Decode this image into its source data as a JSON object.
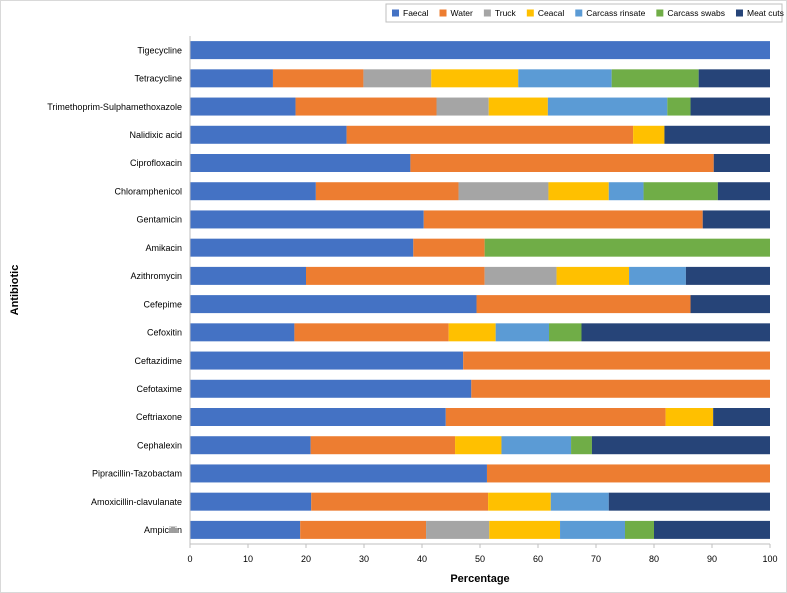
{
  "chart_data": {
    "type": "bar",
    "orientation": "horizontal",
    "stacked": true,
    "title": "",
    "xlabel": "Percentage",
    "ylabel": "Antibiotic",
    "xlim": [
      0,
      100
    ],
    "xticks": [
      0,
      10,
      20,
      30,
      40,
      50,
      60,
      70,
      80,
      90,
      100
    ],
    "legend_position": "top-right",
    "categories": [
      "Tigecycline",
      "Tetracycline",
      "Trimethoprim-Sulphamethoxazole",
      "Nalidixic acid",
      "Ciprofloxacin",
      "Chloramphenicol",
      "Gentamicin",
      "Amikacin",
      "Azithromycin",
      "Cefepime",
      "Cefoxitin",
      "Ceftazidime",
      "Cefotaxime",
      "Ceftriaxone",
      "Cephalexin",
      "Pipracillin-Tazobactam",
      "Amoxicillin-clavulanate",
      "Ampicillin"
    ],
    "series": [
      {
        "name": "Faecal",
        "color": "#4472c4",
        "values": [
          100,
          14.3,
          18.2,
          27.0,
          38.0,
          21.7,
          40.3,
          38.5,
          20.0,
          49.4,
          18.0,
          47.1,
          48.5,
          44.1,
          20.8,
          51.2,
          20.9,
          19.0
        ]
      },
      {
        "name": "Water",
        "color": "#ed7d31",
        "values": [
          0,
          15.6,
          24.3,
          49.4,
          52.3,
          24.6,
          48.1,
          12.3,
          30.8,
          36.9,
          26.6,
          52.9,
          51.5,
          37.9,
          24.9,
          48.8,
          30.5,
          21.7
        ]
      },
      {
        "name": "Truck",
        "color": "#a5a5a5",
        "values": [
          0,
          11.7,
          9.0,
          0,
          0,
          15.5,
          0,
          0,
          12.4,
          0,
          0,
          0,
          0,
          0,
          0,
          0,
          0,
          10.9
        ]
      },
      {
        "name": "Ceacal",
        "color": "#ffc000",
        "values": [
          0,
          15.0,
          10.2,
          5.4,
          0,
          10.4,
          0,
          0,
          12.5,
          0,
          8.1,
          0,
          0,
          8.2,
          8.0,
          0,
          10.8,
          12.2
        ]
      },
      {
        "name": "Carcass rinsate",
        "color": "#5b9bd5",
        "values": [
          0,
          16.1,
          20.6,
          0,
          0,
          6.0,
          0,
          0,
          9.8,
          0,
          9.2,
          0,
          0,
          0,
          12.0,
          0,
          10.0,
          11.2
        ]
      },
      {
        "name": "Carcass swabs",
        "color": "#70ad47",
        "values": [
          0,
          15.0,
          4.0,
          0,
          0,
          12.8,
          0,
          49.2,
          0,
          0,
          5.6,
          0,
          0,
          0,
          3.6,
          0,
          0,
          5.0
        ]
      },
      {
        "name": "Meat cuts",
        "color": "#264478",
        "values": [
          0,
          12.3,
          13.7,
          18.2,
          9.7,
          9.0,
          11.6,
          0,
          14.5,
          13.7,
          32.5,
          0,
          0,
          9.8,
          30.7,
          0,
          27.8,
          20.0
        ]
      }
    ]
  }
}
